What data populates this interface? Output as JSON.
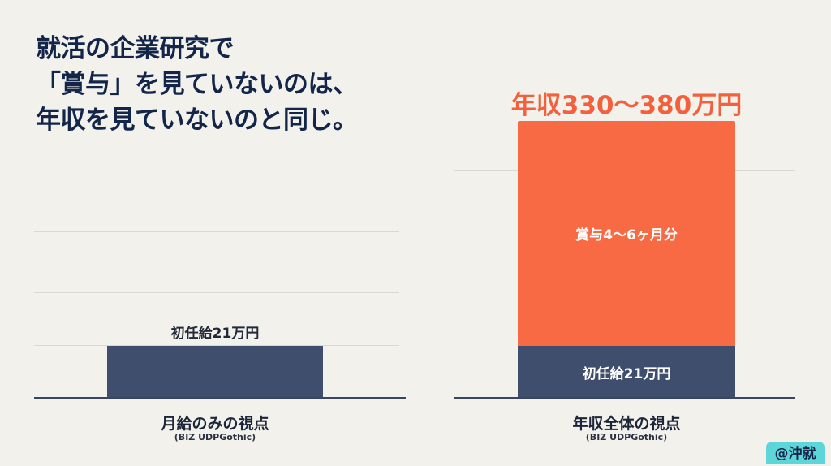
{
  "title_lines": [
    "就活の企業研究で",
    "「賞与」を見ていないのは、",
    "年収を見ていないのと同じ。"
  ],
  "chart_data": [
    {
      "type": "bar",
      "categories": [
        "月給のみの視点"
      ],
      "sublabel": "(BIZ UDPGothic)",
      "series": [
        {
          "name": "初任給21万円",
          "values": [
            21
          ]
        }
      ],
      "bar_labels": [
        "初任給21万円"
      ],
      "grid": true
    },
    {
      "type": "bar",
      "stacked": true,
      "categories": [
        "年収全体の視点"
      ],
      "sublabel": "(BIZ UDPGothic)",
      "series": [
        {
          "name": "初任給21万円",
          "values": [
            21
          ]
        },
        {
          "name": "賞与4～6ヶ月分",
          "values": [
            91
          ]
        }
      ],
      "total_label": "年収330～380万円",
      "grid": true
    }
  ],
  "colors": {
    "navy": "#3f4e6d",
    "orange": "#f76a44",
    "title": "#13264a",
    "badge": "#5cd6d8"
  },
  "badge": "@沖就"
}
